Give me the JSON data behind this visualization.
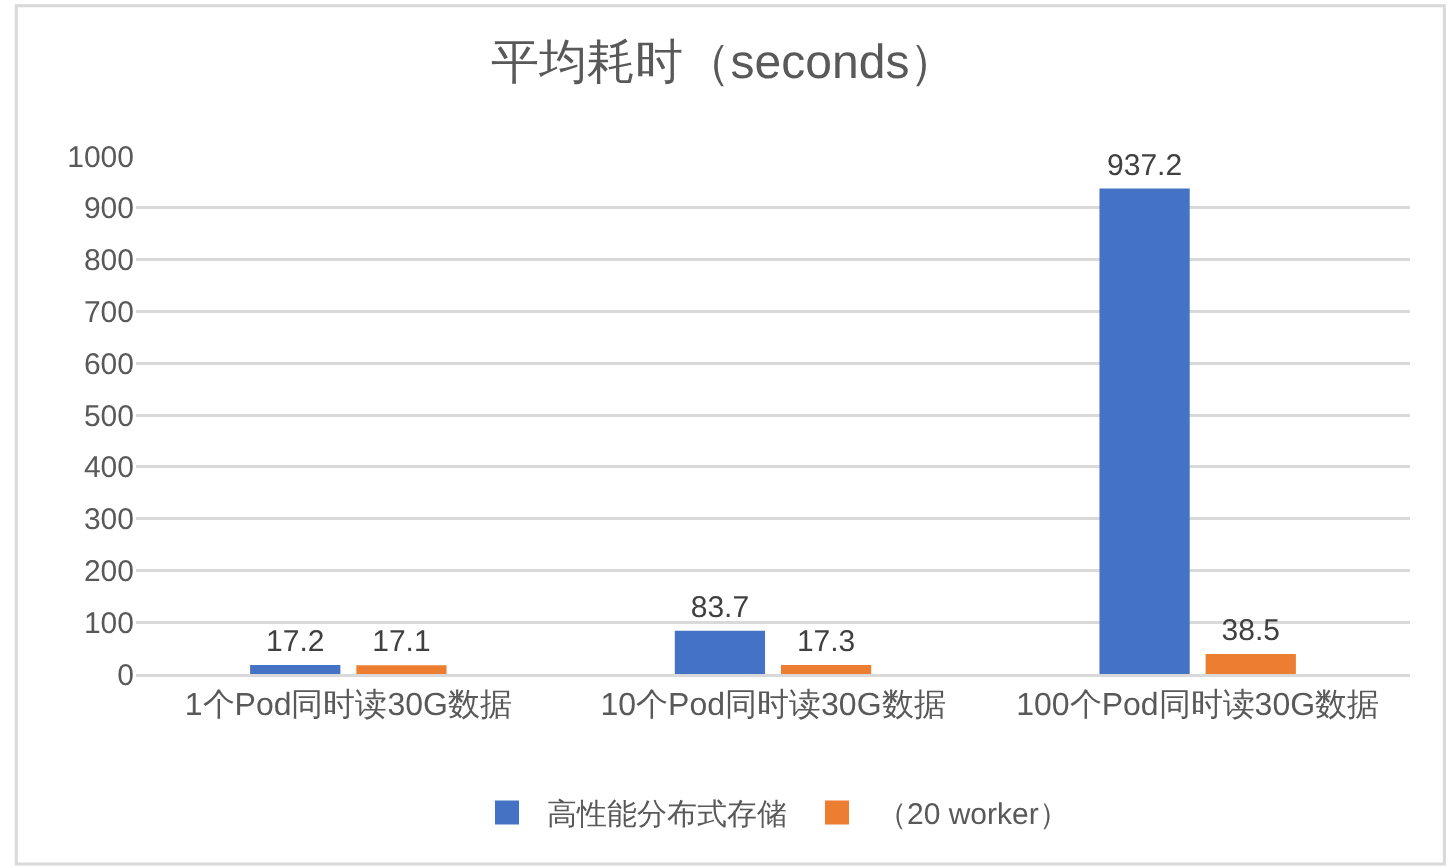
{
  "chart_data": {
    "type": "bar",
    "title": "平均耗时（seconds）",
    "categories": [
      "1个Pod同时读30G数据",
      "10个Pod同时读30G数据",
      "100个Pod同时读30G数据"
    ],
    "series": [
      {
        "name": "高性能分布式存储",
        "color": "#4472c4",
        "values": [
          17.2,
          83.7,
          937.2
        ]
      },
      {
        "name": "（20 worker）",
        "color": "#ed7d31",
        "values": [
          17.1,
          17.3,
          38.5
        ]
      }
    ],
    "ylim": [
      0,
      1000
    ],
    "yticks": [
      0,
      100,
      200,
      300,
      400,
      500,
      600,
      700,
      800,
      900,
      1000
    ],
    "grid": "y",
    "legend": "bottom",
    "data_labels": true
  }
}
